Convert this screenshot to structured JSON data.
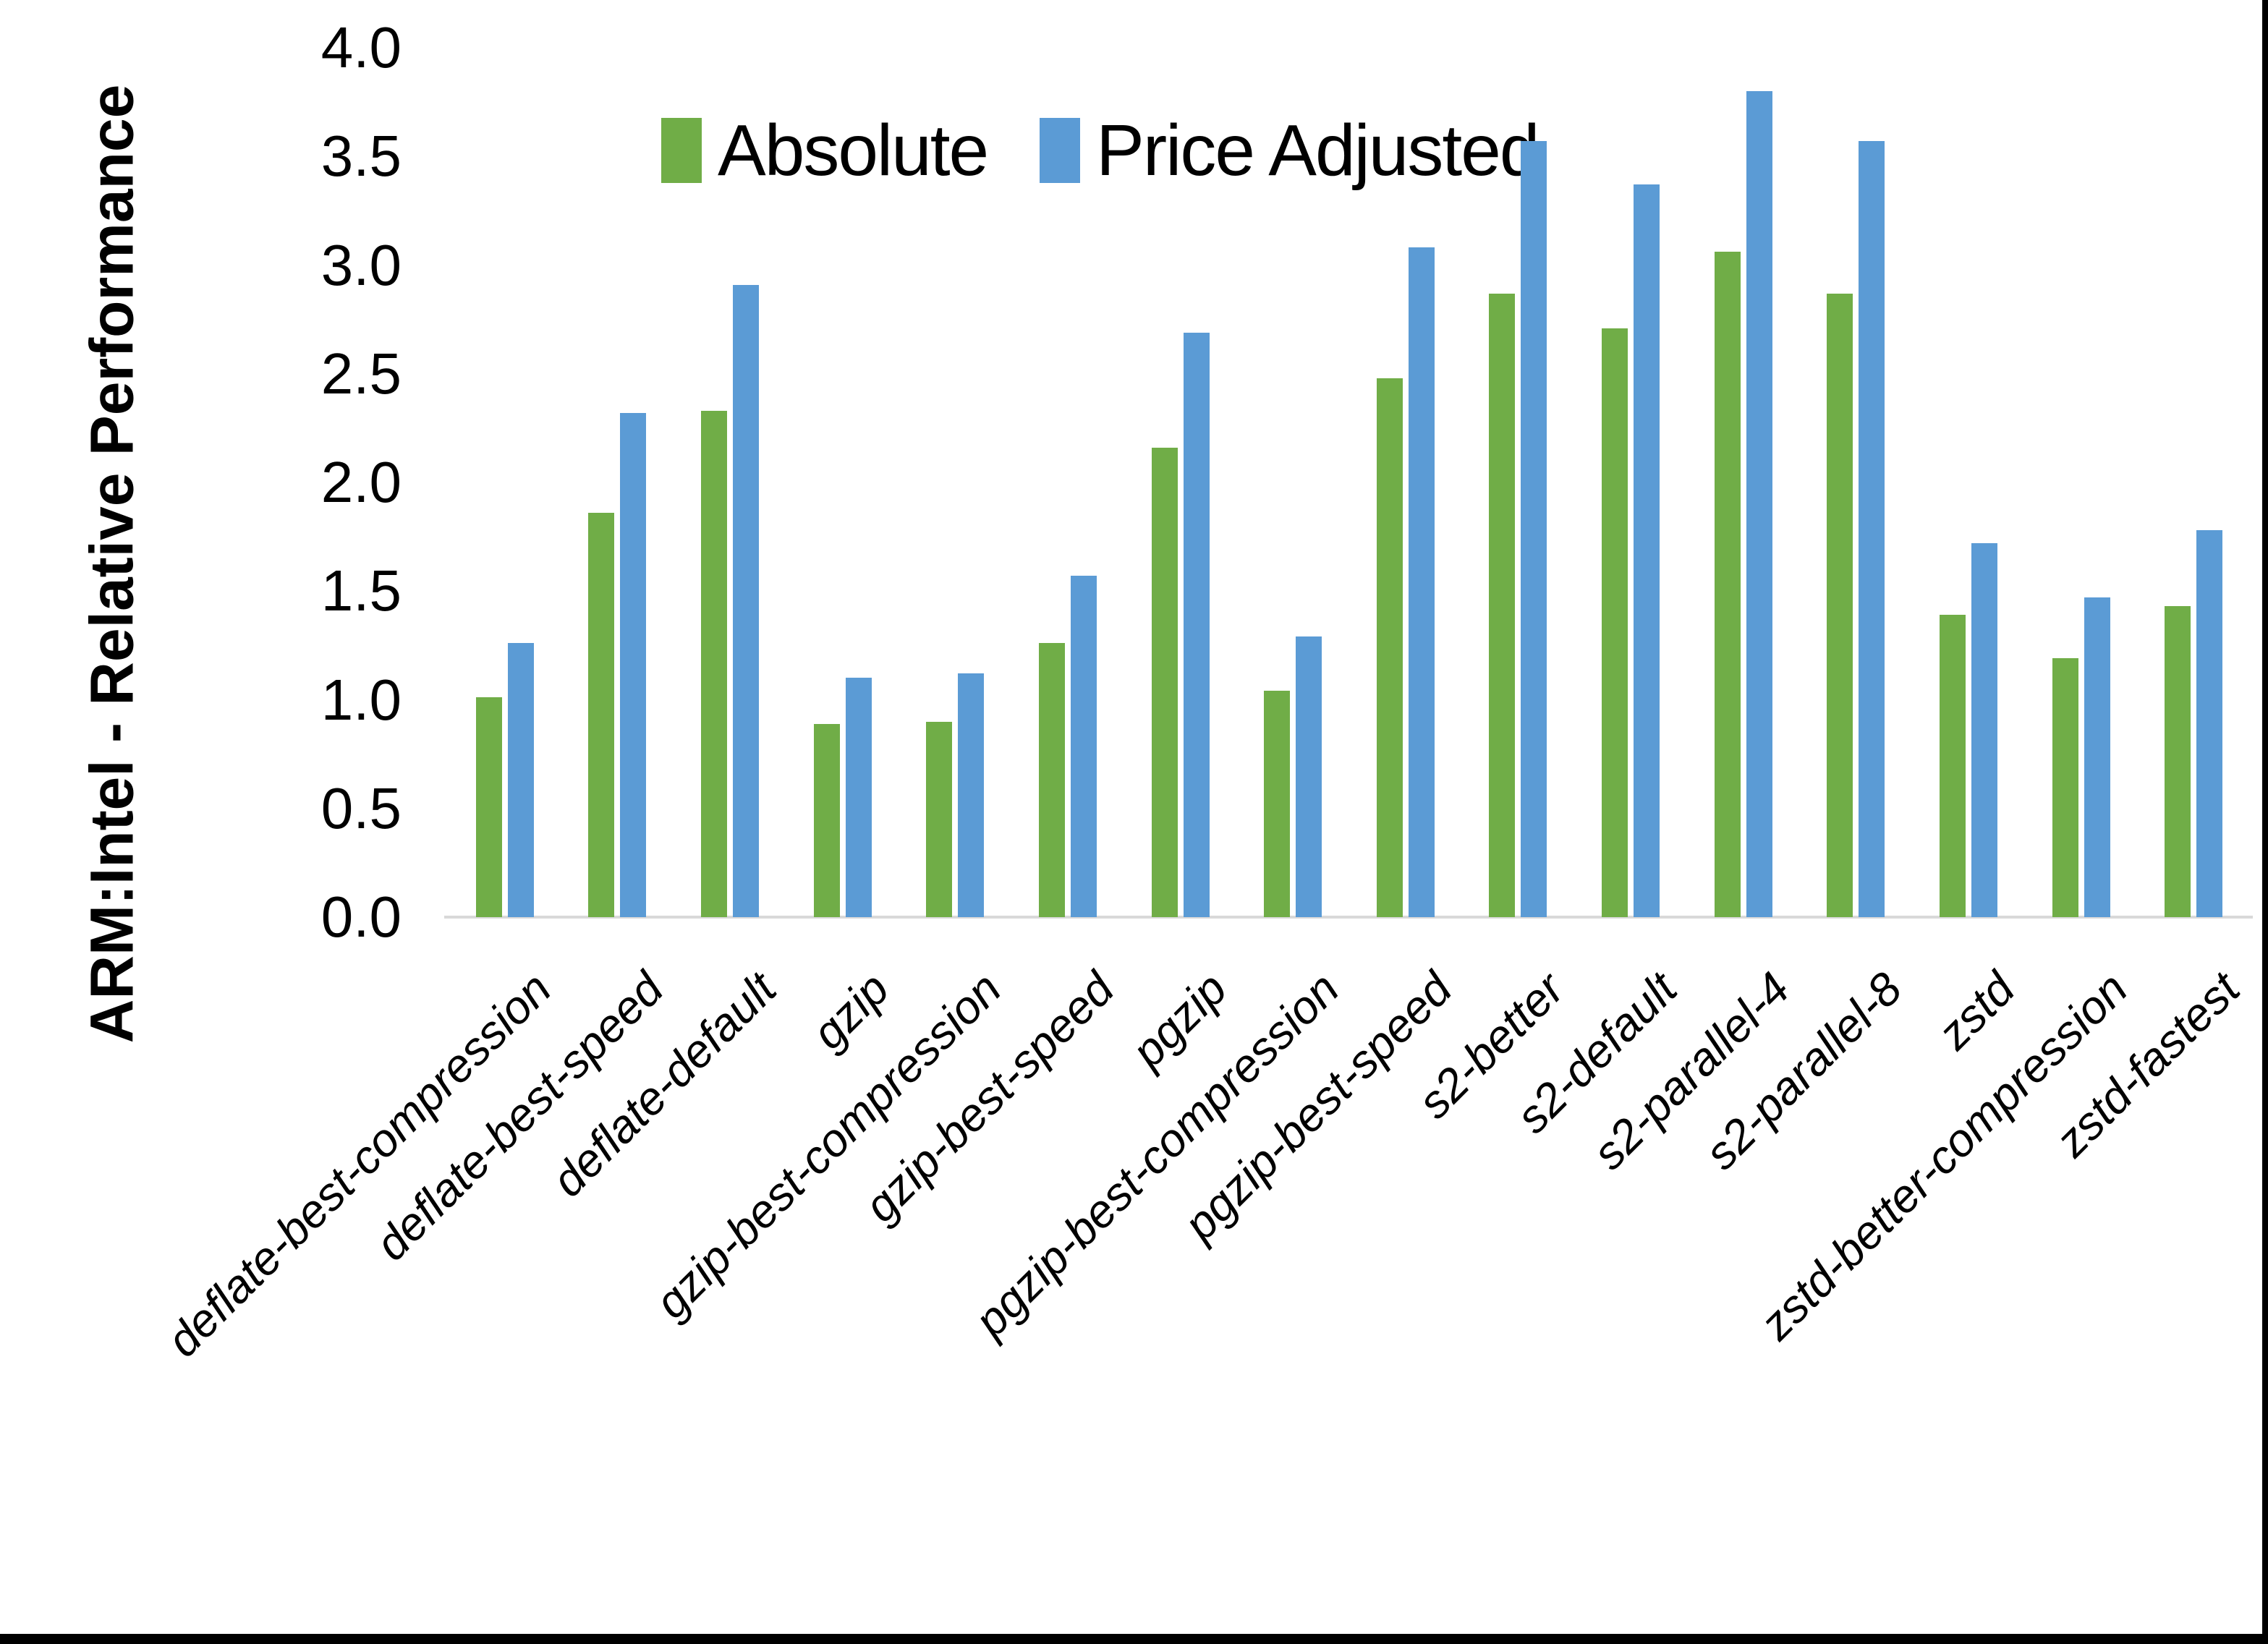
{
  "chart_data": {
    "type": "bar",
    "title": "",
    "xlabel": "",
    "ylabel": "ARM:Intel - Relative Performance",
    "ylim": [
      0,
      4
    ],
    "ytick_labels": [
      "0.0",
      "0.5",
      "1.0",
      "1.5",
      "2.0",
      "2.5",
      "3.0",
      "3.5",
      "4.0"
    ],
    "grid": false,
    "legend_position": "top-inside",
    "categories": [
      "deflate-best-compression",
      "deflate-best-speed",
      "deflate-default",
      "gzip",
      "gzip-best-compression",
      "gzip-best-speed",
      "pgzip",
      "pgzip-best-compression",
      "pgzip-best-speed",
      "s2-better",
      "s2-default",
      "s2-parallel-4",
      "s2-parallel-8",
      "zstd",
      "zstd-better-compression",
      "zstd-fastest"
    ],
    "series": [
      {
        "name": "Absolute",
        "color": "#70AD47",
        "values": [
          1.01,
          1.86,
          2.33,
          0.89,
          0.9,
          1.26,
          2.16,
          1.04,
          2.48,
          2.87,
          2.71,
          3.06,
          2.87,
          1.39,
          1.19,
          1.43
        ]
      },
      {
        "name": "Price Adjusted",
        "color": "#5B9BD5",
        "values": [
          1.26,
          2.32,
          2.91,
          1.1,
          1.12,
          1.57,
          2.69,
          1.29,
          3.08,
          3.57,
          3.37,
          3.8,
          3.57,
          1.72,
          1.47,
          1.78
        ]
      }
    ]
  },
  "colors": {
    "axis_line": "#d9d9d9",
    "background": "#ffffff",
    "frame": "#000000"
  }
}
